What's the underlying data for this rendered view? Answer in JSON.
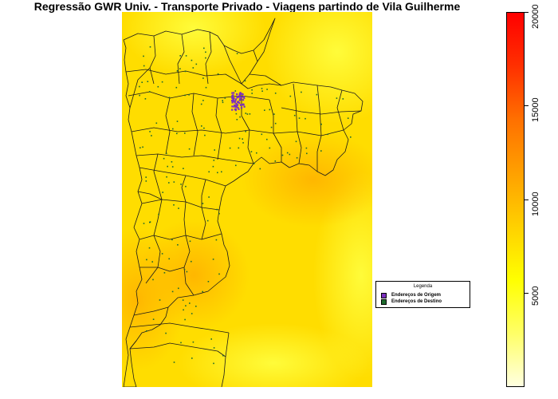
{
  "title": "Regressão GWR Univ. - Transporte Privado - Viagens partindo de Vila Guilherme",
  "legend": {
    "title": "Legenda",
    "items": [
      {
        "label": "Endereços de Origem",
        "color": "#7b2fbe"
      },
      {
        "label": "Endereços de Destino",
        "color": "#1e6b2e"
      }
    ]
  },
  "colorbar": {
    "min": 0,
    "max": 20000,
    "ticks": [
      "5000",
      "10000",
      "15000",
      "20000"
    ],
    "colors": [
      "#ffffe0",
      "#ffff66",
      "#ffff00",
      "#ffd000",
      "#ffa000",
      "#ff7000",
      "#ff3000",
      "#ff0000"
    ]
  },
  "map": {
    "background_color": "#ffdd00",
    "boundary_color": "#1a1a1a",
    "origin_color": "#7b2fbe",
    "destination_color": "#1e6b2e"
  }
}
